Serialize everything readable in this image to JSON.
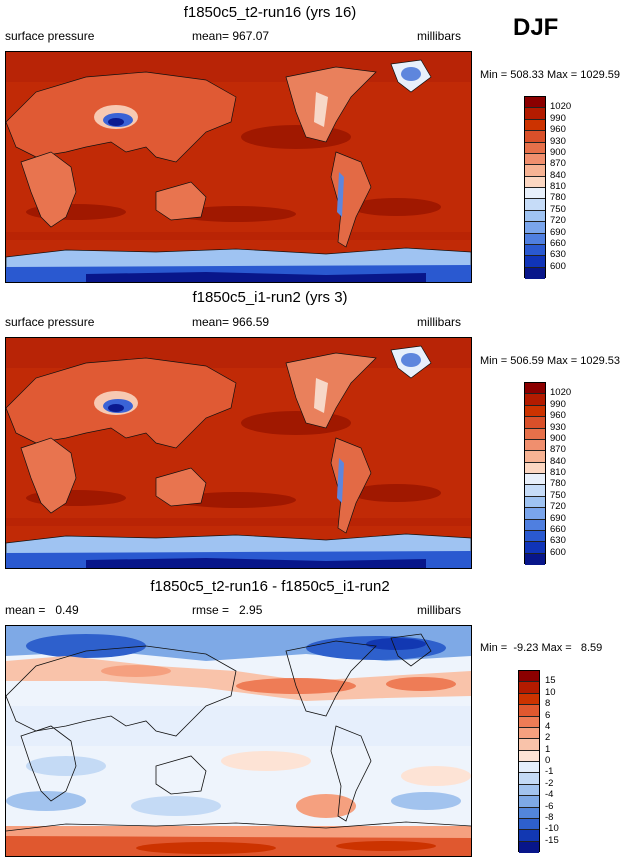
{
  "season": "DJF",
  "panels": [
    {
      "id": "t2",
      "title": "f1850c5_t2-run16 (yrs 16)",
      "left_label": "surface pressure",
      "center_label": "mean= 967.07",
      "right_label": "millibars",
      "minmax": "Min = 508.33 Max = 1029.59",
      "kind": "abs"
    },
    {
      "id": "i1",
      "title": "f1850c5_i1-run2 (yrs 3)",
      "left_label": "surface pressure",
      "center_label": "mean= 966.59",
      "right_label": "millibars",
      "minmax": "Min = 506.59 Max = 1029.53",
      "kind": "abs"
    },
    {
      "id": "diff",
      "title": "f1850c5_t2-run16 - f1850c5_i1-run2",
      "left_label": "mean =   0.49",
      "center_label": "rmse =   2.95",
      "right_label": "millibars",
      "minmax": "Min =  -9.23 Max =   8.59",
      "kind": "diff"
    }
  ],
  "colorbars": {
    "abs": {
      "labels": [
        "1020",
        "990",
        "960",
        "930",
        "900",
        "870",
        "840",
        "810",
        "780",
        "750",
        "720",
        "690",
        "660",
        "630",
        "600"
      ],
      "colors": [
        "#8b0000",
        "#b31b00",
        "#cc3300",
        "#d9502a",
        "#e6704a",
        "#f08f6e",
        "#f7b394",
        "#fcd7c2",
        "#e8f0fb",
        "#c6dcf8",
        "#9fc3f2",
        "#7aa5ec",
        "#4f7fe0",
        "#2a59d0",
        "#1034b8",
        "#08168a"
      ]
    },
    "diff": {
      "labels": [
        "15",
        "10",
        "8",
        "6",
        "4",
        "2",
        "1",
        "0",
        "-1",
        "-2",
        "-4",
        "-6",
        "-8",
        "-10",
        "-15"
      ],
      "colors": [
        "#8b0000",
        "#b31b00",
        "#cc3300",
        "#e0582f",
        "#ee7c56",
        "#f5a07f",
        "#f9c3aa",
        "#fde3d5",
        "#e4eefb",
        "#c4daf5",
        "#a2c3ee",
        "#7ea9e6",
        "#5386db",
        "#2e60cc",
        "#1238b2",
        "#08168a"
      ]
    }
  }
}
